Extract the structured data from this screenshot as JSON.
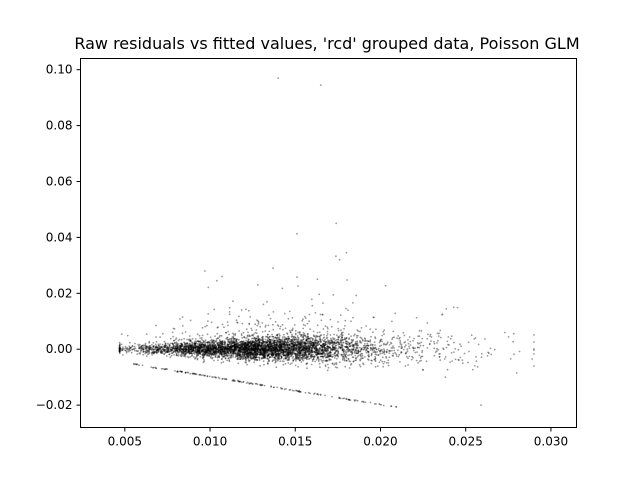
{
  "chart_data": {
    "type": "scatter",
    "title": "Raw residuals vs fitted values, 'rcd' grouped data, Poisson GLM",
    "xlabel": "",
    "ylabel": "",
    "xlim": [
      0.0024,
      0.0315
    ],
    "ylim": [
      -0.028,
      0.104
    ],
    "x_ticks": [
      0.005,
      0.01,
      0.015,
      0.02,
      0.025,
      0.03
    ],
    "x_tick_labels": [
      "0.005",
      "0.010",
      "0.015",
      "0.020",
      "0.025",
      "0.030"
    ],
    "y_ticks": [
      -0.02,
      0.0,
      0.02,
      0.04,
      0.06,
      0.08,
      0.1
    ],
    "y_tick_labels": [
      "−0.02",
      "0.00",
      "0.02",
      "0.04",
      "0.06",
      "0.08",
      "0.10"
    ],
    "grid": false,
    "legend": false,
    "marker_color": "#000000",
    "marker_alpha": 0.4,
    "main_cloud": {
      "x_range": [
        0.0045,
        0.029
      ],
      "x_center": 0.012,
      "y_center": 0.0,
      "y_spread_sd": 0.0028,
      "approx_point_count": 5000
    },
    "lower_bound_line": {
      "comment": "Zero-count observations form a line y = -x",
      "x_range": [
        0.0055,
        0.021
      ],
      "y_equals_negative_x": true
    },
    "outliers": [
      {
        "x": 0.014,
        "y": 0.097
      },
      {
        "x": 0.0165,
        "y": 0.0945
      },
      {
        "x": 0.0174,
        "y": 0.045
      },
      {
        "x": 0.0151,
        "y": 0.0413
      },
      {
        "x": 0.018,
        "y": 0.0345
      },
      {
        "x": 0.0176,
        "y": 0.032
      },
      {
        "x": 0.0137,
        "y": 0.029
      },
      {
        "x": 0.0097,
        "y": 0.028
      },
      {
        "x": 0.0107,
        "y": 0.026
      },
      {
        "x": 0.0163,
        "y": 0.025
      },
      {
        "x": 0.0151,
        "y": 0.0258
      },
      {
        "x": 0.0104,
        "y": 0.0245
      },
      {
        "x": 0.0128,
        "y": 0.023
      },
      {
        "x": 0.0203,
        "y": 0.0227
      },
      {
        "x": 0.0099,
        "y": 0.0221
      },
      {
        "x": 0.0164,
        "y": 0.0196
      },
      {
        "x": 0.0259,
        "y": -0.02
      },
      {
        "x": 0.028,
        "y": -0.0085
      },
      {
        "x": 0.0289,
        "y": -0.0035
      },
      {
        "x": 0.0273,
        "y": 0.006
      },
      {
        "x": 0.0243,
        "y": 0.015
      }
    ]
  }
}
